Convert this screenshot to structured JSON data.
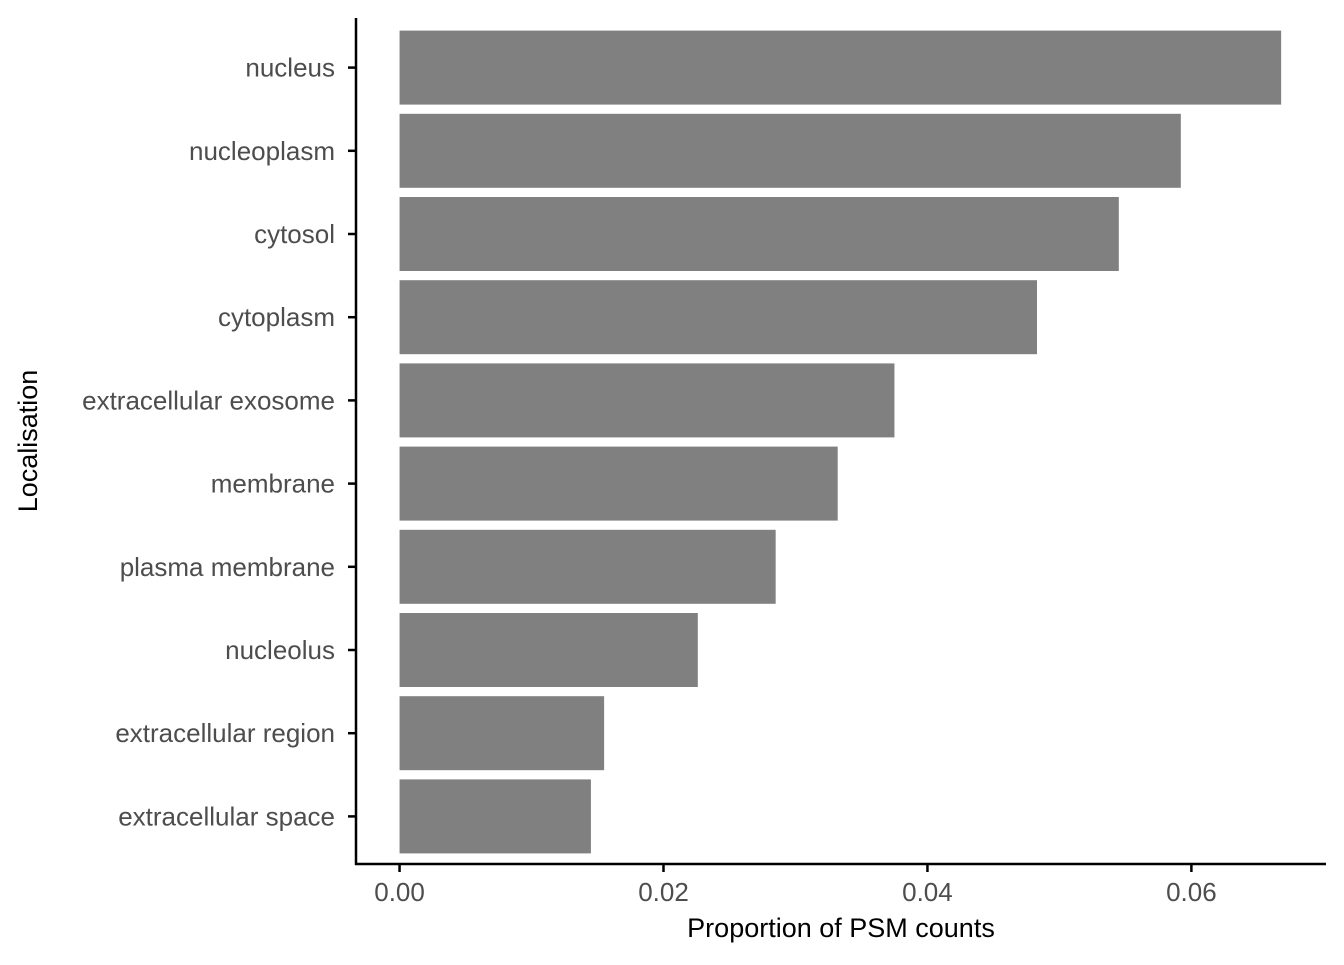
{
  "chart_data": {
    "type": "bar",
    "orientation": "horizontal",
    "categories": [
      "nucleus",
      "nucleoplasm",
      "cytosol",
      "cytoplasm",
      "extracellular exosome",
      "membrane",
      "plasma membrane",
      "nucleolus",
      "extracellular region",
      "extracellular space"
    ],
    "values": [
      0.0668,
      0.0592,
      0.0545,
      0.0483,
      0.0375,
      0.0332,
      0.0285,
      0.0226,
      0.0155,
      0.0145
    ],
    "xlabel": "Proportion of PSM counts",
    "ylabel": "Localisation",
    "xlim": [
      -0.0033,
      0.0702
    ],
    "xticks": [
      0.0,
      0.02,
      0.04,
      0.06
    ],
    "xtick_labels": [
      "0.00",
      "0.02",
      "0.04",
      "0.06"
    ],
    "bar_color": "#808080",
    "grid": false,
    "legend": "none"
  }
}
